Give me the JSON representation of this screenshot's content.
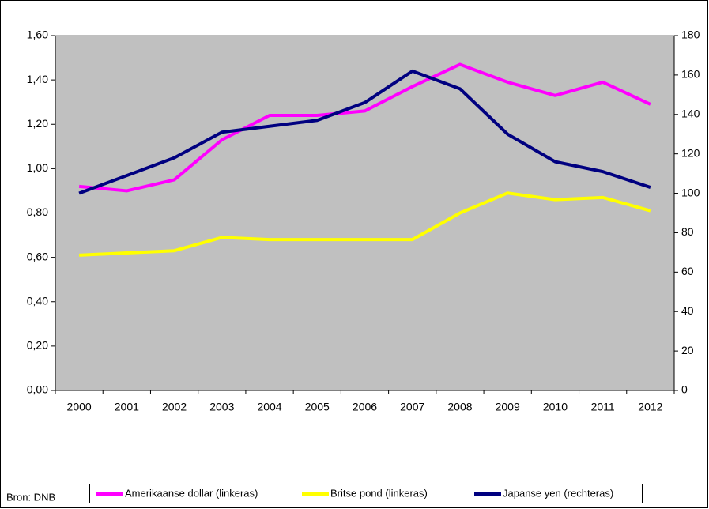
{
  "chart_data": {
    "type": "line",
    "categories": [
      "2000",
      "2001",
      "2002",
      "2003",
      "2004",
      "2005",
      "2006",
      "2007",
      "2008",
      "2009",
      "2010",
      "2011",
      "2012"
    ],
    "series": [
      {
        "name": "Amerikaanse dollar (linkeras)",
        "color": "#ff00ff",
        "values": [
          0.92,
          0.9,
          0.95,
          1.13,
          1.24,
          1.24,
          1.26,
          1.37,
          1.47,
          1.39,
          1.33,
          1.39,
          1.29
        ]
      },
      {
        "name": "Britse pond (linkeras)",
        "color": "#ffff00",
        "values": [
          0.61,
          0.62,
          0.63,
          0.69,
          0.68,
          0.68,
          0.68,
          0.68,
          0.8,
          0.89,
          0.86,
          0.87,
          0.81
        ]
      },
      {
        "name": "Japanse yen (rechteras)",
        "color": "#000080",
        "axis": "y2",
        "values": [
          100,
          109,
          118,
          131,
          134,
          137,
          146,
          162,
          153,
          130,
          116,
          111,
          103
        ]
      }
    ],
    "ylim": [
      0,
      1.6
    ],
    "yticks": [
      {
        "value": 0,
        "label": "0,00"
      },
      {
        "value": 0.2,
        "label": "0,20"
      },
      {
        "value": 0.4,
        "label": "0,40"
      },
      {
        "value": 0.6,
        "label": "0,60"
      },
      {
        "value": 0.8,
        "label": "0,80"
      },
      {
        "value": 1.0,
        "label": "1,00"
      },
      {
        "value": 1.2,
        "label": "1,20"
      },
      {
        "value": 1.4,
        "label": "1,40"
      },
      {
        "value": 1.6,
        "label": "1,60"
      }
    ],
    "y2lim": [
      0,
      180
    ],
    "y2ticks": [
      0,
      20,
      40,
      60,
      80,
      100,
      120,
      140,
      160,
      180
    ],
    "source": "Bron: DNB",
    "legend": "bottom",
    "plot_background": "#c0c0c0"
  }
}
